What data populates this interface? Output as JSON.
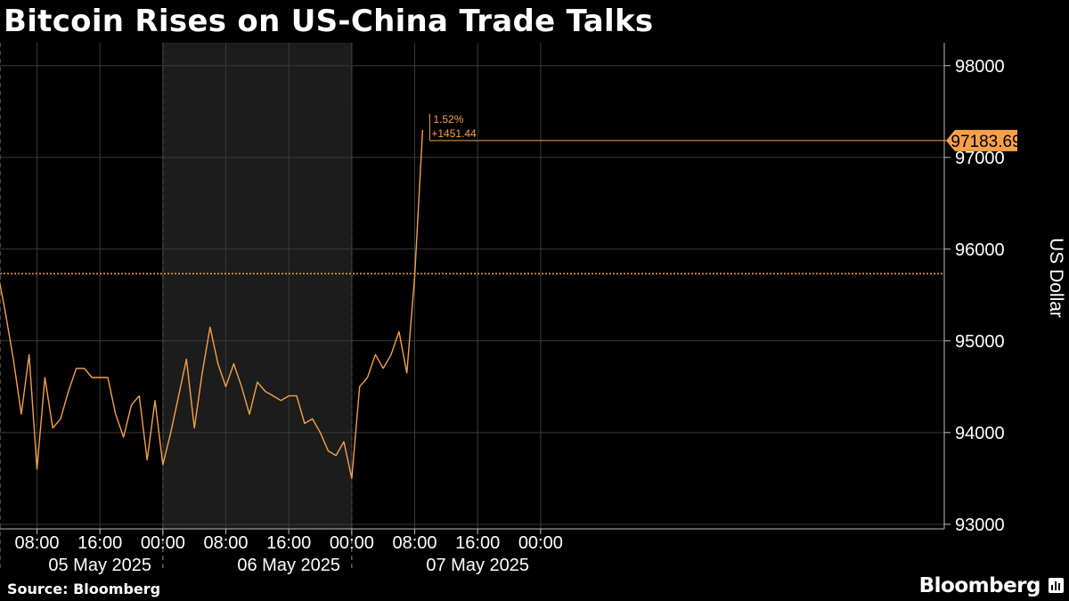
{
  "title": "Bitcoin Rises on US-China Trade Talks",
  "source": "Source: Bloomberg",
  "brand": "Bloomberg",
  "colors": {
    "line": "#f5a04a",
    "accent": "#f5a04a",
    "background": "#000000",
    "shade": "#1c1c1c",
    "grid": "#3a3a3a"
  },
  "chart_data": {
    "type": "line",
    "title": "Bitcoin Rises on US-China Trade Talks",
    "ylabel": "US Dollar",
    "ylim": [
      92950,
      98250
    ],
    "yticks": [
      93000,
      94000,
      95000,
      96000,
      97000,
      98000
    ],
    "xlim_hours": [
      0,
      120
    ],
    "xticks": [
      "08:00",
      "16:00",
      "00:00",
      "08:00",
      "16:00",
      "00:00",
      "08:00",
      "16:00",
      "00:00"
    ],
    "date_labels": [
      "05 May 2025",
      "06 May 2025",
      "07 May 2025"
    ],
    "shaded_day": "06 May 2025",
    "reference_level": 95732.25,
    "last_value": "97183.69",
    "change_pct": "1.52%",
    "change_abs": "+1451.44",
    "series": [
      {
        "x": [
          "05 May 03:00",
          "05 May 04:00",
          "05 May 05:00",
          "05 May 06:00",
          "05 May 07:00",
          "05 May 08:00",
          "05 May 09:00",
          "05 May 10:00",
          "05 May 11:00",
          "05 May 12:00",
          "05 May 13:00",
          "05 May 14:00",
          "05 May 15:00",
          "05 May 16:00",
          "05 May 17:00",
          "05 May 18:00",
          "05 May 19:00",
          "05 May 20:00",
          "05 May 21:00",
          "05 May 22:00",
          "05 May 23:00",
          "06 May 00:00",
          "06 May 01:00",
          "06 May 02:00",
          "06 May 03:00",
          "06 May 04:00",
          "06 May 05:00",
          "06 May 06:00",
          "06 May 07:00",
          "06 May 08:00",
          "06 May 09:00",
          "06 May 10:00",
          "06 May 11:00",
          "06 May 12:00",
          "06 May 13:00",
          "06 May 14:00",
          "06 May 15:00",
          "06 May 16:00",
          "06 May 17:00",
          "06 May 18:00",
          "06 May 19:00",
          "06 May 20:00",
          "06 May 21:00",
          "06 May 22:00",
          "06 May 23:00",
          "07 May 00:00",
          "07 May 01:00",
          "07 May 02:00",
          "07 May 03:00",
          "07 May 04:00",
          "07 May 05:00",
          "07 May 06:00",
          "07 May 07:00",
          "07 May 08:00",
          "07 May 09:00"
        ],
        "y": [
          95750,
          95300,
          94800,
          94200,
          94850,
          93600,
          94600,
          94050,
          94150,
          94450,
          94700,
          94700,
          94600,
          94600,
          94600,
          94200,
          93950,
          94300,
          94400,
          93700,
          94350,
          93650,
          94000,
          94400,
          94800,
          94050,
          94650,
          95150,
          94750,
          94500,
          94750,
          94500,
          94200,
          94550,
          94450,
          94400,
          94350,
          94400,
          94400,
          94100,
          94150,
          94000,
          93800,
          93750,
          93900,
          93500,
          94500,
          94600,
          94850,
          94700,
          94850,
          95100,
          94650,
          95700,
          97300
        ]
      }
    ]
  }
}
